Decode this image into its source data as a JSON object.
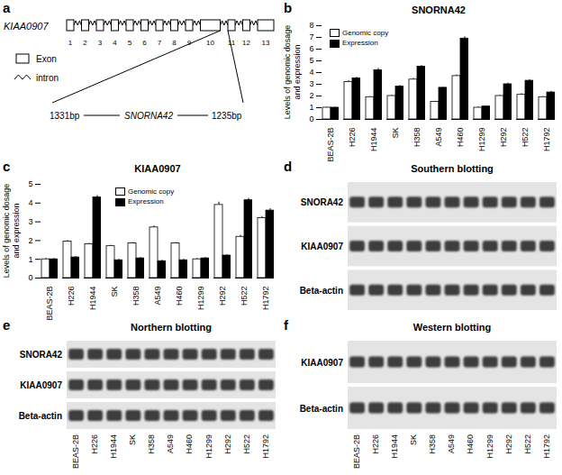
{
  "chart_data": [
    {
      "type": "bar",
      "panel": "b",
      "title": "SNORNA42",
      "categories": [
        "BEAS-2B",
        "H226",
        "H1944",
        "SK",
        "H358",
        "A549",
        "H460",
        "H1299",
        "H292",
        "H522",
        "H1792"
      ],
      "series": [
        {
          "name": "Genomic copy",
          "color": "#ffffff",
          "values": [
            1.0,
            3.2,
            1.9,
            2.0,
            3.4,
            1.5,
            3.7,
            1.0,
            2.0,
            2.1,
            1.9
          ],
          "errors": [
            0.05,
            0.1,
            0.05,
            0.05,
            0.1,
            0.05,
            0.1,
            0.05,
            0.05,
            0.1,
            0.05
          ]
        },
        {
          "name": "Expression",
          "color": "#000000",
          "values": [
            1.0,
            3.5,
            4.2,
            2.8,
            4.5,
            2.7,
            6.9,
            1.1,
            3.0,
            3.3,
            2.3
          ],
          "errors": [
            0.05,
            0.1,
            0.15,
            0.1,
            0.1,
            0.05,
            0.15,
            0.05,
            0.1,
            0.1,
            0.1
          ]
        }
      ],
      "ylabel": "Levels of genomic dosage and expression",
      "ylim": [
        0,
        8
      ],
      "yticks": [
        0,
        1,
        2,
        3,
        4,
        5,
        6,
        7,
        8
      ],
      "legend": "top-left"
    },
    {
      "type": "bar",
      "panel": "c",
      "title": "KIAA0907",
      "categories": [
        "BEAS-2B",
        "H226",
        "H1944",
        "SK",
        "H358",
        "A549",
        "H460",
        "H1299",
        "H292",
        "H522",
        "H1792"
      ],
      "series": [
        {
          "name": "Genomic copy",
          "color": "#ffffff",
          "values": [
            1.0,
            1.95,
            1.8,
            1.7,
            1.85,
            2.7,
            1.85,
            1.0,
            3.9,
            2.2,
            3.2
          ],
          "errors": [
            0.05,
            0.05,
            0.05,
            0.05,
            0.05,
            0.08,
            0.05,
            0.05,
            0.15,
            0.08,
            0.08
          ]
        },
        {
          "name": "Expression",
          "color": "#000000",
          "values": [
            1.0,
            1.1,
            4.3,
            0.95,
            1.05,
            0.9,
            0.95,
            1.05,
            1.2,
            4.15,
            3.6
          ],
          "errors": [
            0.05,
            0.05,
            0.1,
            0.05,
            0.05,
            0.05,
            0.05,
            0.05,
            0.05,
            0.1,
            0.1
          ]
        }
      ],
      "ylabel": "Levels of genomic dosage and expression",
      "ylim": [
        0,
        5
      ],
      "yticks": [
        0,
        1,
        2,
        3,
        4,
        5
      ],
      "legend": "top"
    }
  ],
  "diagram": {
    "panel": "a",
    "gene": "KIAA0907",
    "exons": [
      1,
      2,
      3,
      4,
      5,
      6,
      7,
      8,
      9,
      10,
      11,
      12,
      13
    ],
    "legend": {
      "exon": "Exon",
      "intron": "intron"
    },
    "insert": {
      "left": "1331bp",
      "name": "SNORNA42",
      "right": "1235bp"
    }
  },
  "blots": [
    {
      "panel": "d",
      "title": "Southern blotting",
      "rows": [
        "SNORA42",
        "KIAA0907",
        "Beta-actin"
      ]
    },
    {
      "panel": "e",
      "title": "Northern blotting",
      "rows": [
        "SNORA42",
        "KIAA0907",
        "Beta-actin"
      ],
      "lanes": [
        "BEAS-2B",
        "H226",
        "H1944",
        "SK",
        "H358",
        "A549",
        "H460",
        "H1299",
        "H292",
        "H522",
        "H1792"
      ]
    },
    {
      "panel": "f",
      "title": "Western blotting",
      "rows": [
        "KIAA0907",
        "Beta-actin"
      ],
      "lanes": [
        "BEAS-2B",
        "H226",
        "H1944",
        "SK",
        "H358",
        "A549",
        "H460",
        "H1299",
        "H292",
        "H522",
        "H1792"
      ]
    }
  ]
}
